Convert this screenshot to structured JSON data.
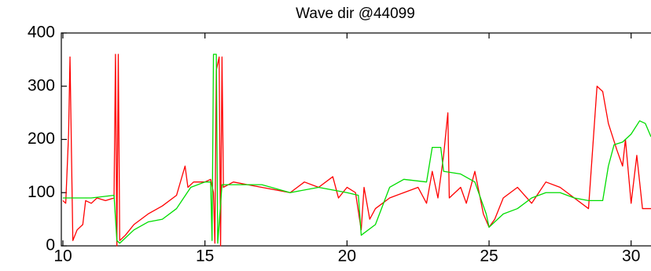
{
  "chart_data": {
    "type": "line",
    "title": "Wave dir @44099",
    "xlim": [
      10,
      30.7
    ],
    "xticks": [
      10,
      15,
      20,
      25,
      30
    ],
    "ylim": [
      0,
      400
    ],
    "yticks": [
      0,
      100,
      200,
      300,
      400
    ],
    "grid": false,
    "series": [
      {
        "color": "#ff0000",
        "x": [
          10.0,
          10.1,
          10.2,
          10.25,
          10.3,
          10.35,
          10.5,
          10.7,
          10.8,
          11.0,
          11.2,
          11.5,
          11.8,
          11.85,
          11.9,
          11.95,
          12.0,
          12.2,
          12.5,
          13.0,
          13.5,
          14.0,
          14.3,
          14.4,
          14.6,
          15.0,
          15.2,
          15.3,
          15.35,
          15.4,
          15.5,
          15.55,
          15.6,
          15.65,
          16.0,
          16.5,
          17.0,
          17.5,
          18.0,
          18.5,
          19.0,
          19.5,
          19.7,
          20.0,
          20.3,
          20.5,
          20.6,
          20.8,
          21.0,
          21.5,
          22.0,
          22.5,
          22.8,
          23.0,
          23.2,
          23.4,
          23.55,
          23.6,
          24.0,
          24.2,
          24.5,
          24.8,
          25.0,
          25.2,
          25.5,
          26.0,
          26.5,
          27.0,
          27.5,
          28.0,
          28.5,
          28.8,
          29.0,
          29.2,
          29.5,
          29.7,
          29.8,
          30.0,
          30.2,
          30.4,
          30.7
        ],
        "values": [
          85,
          80,
          210,
          355,
          180,
          10,
          30,
          40,
          85,
          80,
          90,
          85,
          90,
          360,
          0,
          360,
          10,
          20,
          40,
          60,
          75,
          95,
          150,
          110,
          120,
          120,
          125,
          100,
          5,
          330,
          355,
          0,
          355,
          110,
          120,
          115,
          110,
          105,
          100,
          120,
          110,
          130,
          90,
          110,
          100,
          30,
          110,
          50,
          70,
          90,
          100,
          110,
          80,
          140,
          90,
          170,
          250,
          90,
          110,
          80,
          140,
          60,
          35,
          50,
          90,
          110,
          80,
          120,
          110,
          90,
          70,
          300,
          290,
          230,
          180,
          150,
          200,
          80,
          170,
          70,
          70
        ]
      },
      {
        "color": "#00dd00",
        "x": [
          10.0,
          11.0,
          11.8,
          11.9,
          12.0,
          12.5,
          13.0,
          13.5,
          14.0,
          14.5,
          15.0,
          15.2,
          15.25,
          15.3,
          15.4,
          15.45,
          15.6,
          16.0,
          17.0,
          18.0,
          19.0,
          20.0,
          20.4,
          20.5,
          21.0,
          21.5,
          22.0,
          22.8,
          23.0,
          23.3,
          23.4,
          24.0,
          24.5,
          24.9,
          25.0,
          25.5,
          26.0,
          26.5,
          27.0,
          27.5,
          28.0,
          28.5,
          29.0,
          29.2,
          29.4,
          29.7,
          30.0,
          30.3,
          30.5,
          30.7
        ],
        "values": [
          90,
          90,
          95,
          10,
          5,
          30,
          45,
          50,
          70,
          110,
          120,
          120,
          10,
          360,
          360,
          5,
          115,
          115,
          115,
          100,
          110,
          100,
          95,
          20,
          40,
          110,
          125,
          120,
          185,
          185,
          140,
          135,
          120,
          60,
          35,
          60,
          70,
          90,
          100,
          100,
          90,
          85,
          85,
          150,
          190,
          195,
          210,
          235,
          230,
          205
        ]
      }
    ]
  }
}
